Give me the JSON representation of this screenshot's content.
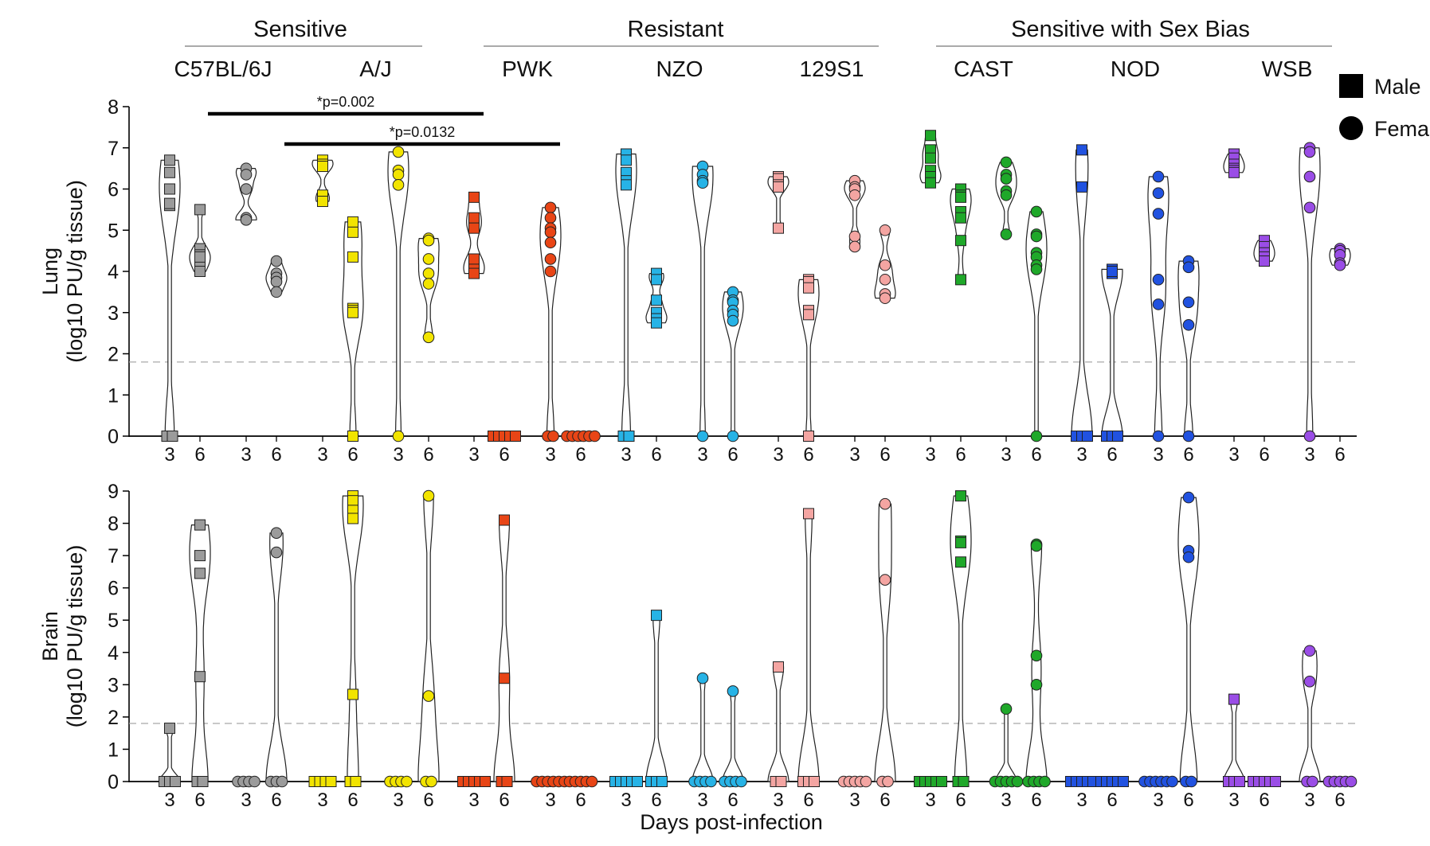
{
  "colors": {
    "C57BL/6J": "#9b9b9b",
    "A/J": "#f2e400",
    "PWK": "#e84516",
    "NZO": "#27b3e6",
    "129S1": "#f4a5a2",
    "CAST": "#1fa82a",
    "NOD": "#2152e0",
    "WSB": "#9a4de6"
  },
  "chart_data": {
    "type": "violin-scatter",
    "group_headers": [
      {
        "label": "Sensitive",
        "strains": [
          "C57BL/6J",
          "A/J"
        ]
      },
      {
        "label": "Resistant",
        "strains": [
          "PWK",
          "NZO",
          "129S1"
        ]
      },
      {
        "label": "Sensitive with Sex Bias",
        "strains": [
          "CAST",
          "NOD",
          "WSB"
        ]
      }
    ],
    "strains": [
      "C57BL/6J",
      "A/J",
      "PWK",
      "NZO",
      "129S1",
      "CAST",
      "NOD",
      "WSB"
    ],
    "days": [
      "3",
      "6"
    ],
    "xlabel": "Days post-infection",
    "legend": [
      {
        "label": "Male",
        "shape": "square"
      },
      {
        "label": "Female",
        "shape": "circle"
      }
    ],
    "panels": [
      {
        "name": "Lung",
        "ylabel_line1": "Lung",
        "ylabel_line2": "(log10 PU/g tissue)",
        "ylim": [
          0,
          8
        ],
        "yticks": [
          "0",
          "1",
          "2",
          "3",
          "4",
          "5",
          "6",
          "7",
          "8"
        ],
        "detection_limit": 1.8,
        "annotations": [
          {
            "text": "*p=0.002",
            "from": "C57BL/6J|male|3",
            "to": "PWK|male|3"
          },
          {
            "text": "*p=0.0132",
            "from": "C57BL/6J|female|3",
            "to": "PWK|female|3"
          }
        ],
        "groups": [
          {
            "strain": "C57BL/6J",
            "sex": "male",
            "day": "3",
            "values": [
              6.7,
              6.4,
              6.0,
              5.6,
              5.65,
              0,
              0
            ]
          },
          {
            "strain": "C57BL/6J",
            "sex": "male",
            "day": "6",
            "values": [
              5.5,
              4.55,
              4.4,
              4.2,
              4.0,
              4.35
            ]
          },
          {
            "strain": "C57BL/6J",
            "sex": "female",
            "day": "3",
            "values": [
              6.5,
              6.35,
              5.3,
              5.25,
              6.0
            ]
          },
          {
            "strain": "C57BL/6J",
            "sex": "female",
            "day": "6",
            "values": [
              4.25,
              3.95,
              3.85,
              3.75,
              3.5
            ]
          },
          {
            "strain": "A/J",
            "sex": "male",
            "day": "3",
            "values": [
              6.7,
              6.6,
              6.55,
              5.85,
              5.7
            ]
          },
          {
            "strain": "A/J",
            "sex": "male",
            "day": "6",
            "values": [
              5.2,
              4.95,
              4.35,
              3.1,
              3.05,
              3.0,
              0
            ]
          },
          {
            "strain": "A/J",
            "sex": "female",
            "day": "3",
            "values": [
              6.9,
              6.45,
              6.35,
              6.1,
              0
            ]
          },
          {
            "strain": "A/J",
            "sex": "female",
            "day": "6",
            "values": [
              4.8,
              4.75,
              4.3,
              3.95,
              3.7,
              2.4
            ]
          },
          {
            "strain": "PWK",
            "sex": "male",
            "day": "3",
            "values": [
              5.8,
              5.3,
              5.05,
              4.3,
              4.05,
              3.95
            ]
          },
          {
            "strain": "PWK",
            "sex": "male",
            "day": "6",
            "values": [
              0,
              0,
              0,
              0,
              0
            ]
          },
          {
            "strain": "PWK",
            "sex": "female",
            "day": "3",
            "values": [
              5.55,
              5.3,
              5.05,
              4.95,
              4.7,
              4.3,
              4.0,
              0,
              0
            ]
          },
          {
            "strain": "PWK",
            "sex": "female",
            "day": "6",
            "values": [
              0,
              0,
              0,
              0,
              0,
              0
            ]
          },
          {
            "strain": "NZO",
            "sex": "male",
            "day": "3",
            "values": [
              6.85,
              6.7,
              6.4,
              6.2,
              6.1,
              0,
              0
            ]
          },
          {
            "strain": "NZO",
            "sex": "male",
            "day": "6",
            "values": [
              3.95,
              3.8,
              3.3,
              3.0,
              2.85,
              2.75
            ]
          },
          {
            "strain": "NZO",
            "sex": "female",
            "day": "3",
            "values": [
              6.55,
              6.35,
              6.2,
              6.15,
              0
            ]
          },
          {
            "strain": "NZO",
            "sex": "female",
            "day": "6",
            "values": [
              3.5,
              3.3,
              3.25,
              3.05,
              2.95,
              2.8,
              0
            ]
          },
          {
            "strain": "129S1",
            "sex": "male",
            "day": "3",
            "values": [
              6.3,
              6.25,
              6.1,
              6.05,
              5.05
            ]
          },
          {
            "strain": "129S1",
            "sex": "male",
            "day": "6",
            "values": [
              3.8,
              3.75,
              3.6,
              3.05,
              2.95,
              0
            ]
          },
          {
            "strain": "129S1",
            "sex": "female",
            "day": "3",
            "values": [
              6.2,
              6.05,
              6.0,
              5.85,
              4.85,
              4.6
            ]
          },
          {
            "strain": "129S1",
            "sex": "female",
            "day": "6",
            "values": [
              5.0,
              4.15,
              3.8,
              3.45,
              3.35
            ]
          },
          {
            "strain": "CAST",
            "sex": "male",
            "day": "3",
            "values": [
              7.3,
              6.95,
              6.75,
              6.45,
              6.3,
              6.15
            ]
          },
          {
            "strain": "CAST",
            "sex": "male",
            "day": "6",
            "values": [
              6.0,
              5.85,
              5.8,
              5.45,
              5.3,
              4.75,
              3.8
            ]
          },
          {
            "strain": "CAST",
            "sex": "female",
            "day": "3",
            "values": [
              6.65,
              6.35,
              6.25,
              5.95,
              5.85,
              4.9
            ]
          },
          {
            "strain": "CAST",
            "sex": "female",
            "day": "6",
            "values": [
              5.45,
              4.9,
              4.85,
              4.45,
              4.35,
              4.15,
              4.05,
              0
            ]
          },
          {
            "strain": "NOD",
            "sex": "male",
            "day": "3",
            "values": [
              6.95,
              6.05,
              0,
              0,
              0
            ]
          },
          {
            "strain": "NOD",
            "sex": "male",
            "day": "6",
            "values": [
              4.05,
              3.95,
              4.0,
              0,
              0,
              0
            ]
          },
          {
            "strain": "NOD",
            "sex": "female",
            "day": "3",
            "values": [
              6.3,
              5.9,
              5.4,
              3.8,
              3.2,
              0
            ]
          },
          {
            "strain": "NOD",
            "sex": "female",
            "day": "6",
            "values": [
              4.25,
              4.1,
              3.25,
              2.7,
              0
            ]
          },
          {
            "strain": "WSB",
            "sex": "male",
            "day": "3",
            "values": [
              6.85,
              6.75,
              6.6,
              6.5,
              6.45,
              6.4
            ]
          },
          {
            "strain": "WSB",
            "sex": "male",
            "day": "6",
            "values": [
              4.75,
              4.6,
              4.45,
              4.35,
              4.25
            ]
          },
          {
            "strain": "WSB",
            "sex": "female",
            "day": "3",
            "values": [
              7.0,
              6.9,
              6.3,
              5.55,
              0
            ]
          },
          {
            "strain": "WSB",
            "sex": "female",
            "day": "6",
            "values": [
              4.55,
              4.5,
              4.4,
              4.2,
              4.15
            ]
          }
        ]
      },
      {
        "name": "Brain",
        "ylabel_line1": "Brain",
        "ylabel_line2": "(log10 PU/g tissue)",
        "ylim": [
          0,
          9
        ],
        "yticks": [
          "0",
          "1",
          "2",
          "3",
          "4",
          "5",
          "6",
          "7",
          "8",
          "9"
        ],
        "detection_limit": 1.8,
        "annotations": [],
        "groups": [
          {
            "strain": "C57BL/6J",
            "sex": "male",
            "day": "3",
            "values": [
              1.65,
              0,
              0,
              0
            ]
          },
          {
            "strain": "C57BL/6J",
            "sex": "male",
            "day": "6",
            "values": [
              7.95,
              7.0,
              6.45,
              3.25,
              0,
              0
            ]
          },
          {
            "strain": "C57BL/6J",
            "sex": "female",
            "day": "3",
            "values": [
              0,
              0,
              0,
              0
            ]
          },
          {
            "strain": "C57BL/6J",
            "sex": "female",
            "day": "6",
            "values": [
              7.7,
              7.1,
              0,
              0,
              0
            ]
          },
          {
            "strain": "A/J",
            "sex": "male",
            "day": "3",
            "values": [
              0,
              0,
              0,
              0
            ]
          },
          {
            "strain": "A/J",
            "sex": "male",
            "day": "6",
            "values": [
              8.85,
              8.7,
              8.4,
              8.15,
              2.7,
              0,
              0
            ]
          },
          {
            "strain": "A/J",
            "sex": "female",
            "day": "3",
            "values": [
              0,
              0,
              0,
              0
            ]
          },
          {
            "strain": "A/J",
            "sex": "female",
            "day": "6",
            "values": [
              8.85,
              2.65,
              0,
              0
            ]
          },
          {
            "strain": "PWK",
            "sex": "male",
            "day": "3",
            "values": [
              0,
              0,
              0,
              0,
              0
            ]
          },
          {
            "strain": "PWK",
            "sex": "male",
            "day": "6",
            "values": [
              8.1,
              3.2,
              0,
              0
            ]
          },
          {
            "strain": "PWK",
            "sex": "female",
            "day": "3",
            "values": [
              0,
              0,
              0,
              0,
              0,
              0
            ]
          },
          {
            "strain": "PWK",
            "sex": "female",
            "day": "6",
            "values": [
              0,
              0,
              0,
              0,
              0
            ]
          },
          {
            "strain": "NZO",
            "sex": "male",
            "day": "3",
            "values": [
              0,
              0,
              0,
              0,
              0
            ]
          },
          {
            "strain": "NZO",
            "sex": "male",
            "day": "6",
            "values": [
              5.15,
              0,
              0,
              0
            ]
          },
          {
            "strain": "NZO",
            "sex": "female",
            "day": "3",
            "values": [
              3.2,
              0,
              0,
              0,
              0
            ]
          },
          {
            "strain": "NZO",
            "sex": "female",
            "day": "6",
            "values": [
              2.8,
              0,
              0,
              0,
              0
            ]
          },
          {
            "strain": "129S1",
            "sex": "male",
            "day": "3",
            "values": [
              3.55,
              0,
              0
            ]
          },
          {
            "strain": "129S1",
            "sex": "male",
            "day": "6",
            "values": [
              8.3,
              0,
              0,
              0
            ]
          },
          {
            "strain": "129S1",
            "sex": "female",
            "day": "3",
            "values": [
              0,
              0,
              0,
              0,
              0
            ]
          },
          {
            "strain": "129S1",
            "sex": "female",
            "day": "6",
            "values": [
              8.6,
              6.25,
              0,
              0
            ]
          },
          {
            "strain": "CAST",
            "sex": "male",
            "day": "3",
            "values": [
              0,
              0,
              0,
              0,
              0
            ]
          },
          {
            "strain": "CAST",
            "sex": "male",
            "day": "6",
            "values": [
              8.85,
              7.45,
              7.4,
              6.8,
              0,
              0
            ]
          },
          {
            "strain": "CAST",
            "sex": "female",
            "day": "3",
            "values": [
              2.25,
              0,
              0,
              0,
              0,
              0
            ]
          },
          {
            "strain": "CAST",
            "sex": "female",
            "day": "6",
            "values": [
              7.35,
              7.3,
              3.9,
              3.0,
              0,
              0,
              0,
              0
            ]
          },
          {
            "strain": "NOD",
            "sex": "male",
            "day": "3",
            "values": [
              0,
              0,
              0,
              0,
              0
            ]
          },
          {
            "strain": "NOD",
            "sex": "male",
            "day": "6",
            "values": [
              0,
              0,
              0,
              0,
              0
            ]
          },
          {
            "strain": "NOD",
            "sex": "female",
            "day": "3",
            "values": [
              0,
              0,
              0,
              0,
              0,
              0
            ]
          },
          {
            "strain": "NOD",
            "sex": "female",
            "day": "6",
            "values": [
              8.8,
              7.15,
              6.95,
              0,
              0
            ]
          },
          {
            "strain": "WSB",
            "sex": "male",
            "day": "3",
            "values": [
              2.55,
              0,
              0,
              0
            ]
          },
          {
            "strain": "WSB",
            "sex": "male",
            "day": "6",
            "values": [
              0,
              0,
              0,
              0,
              0
            ]
          },
          {
            "strain": "WSB",
            "sex": "female",
            "day": "3",
            "values": [
              4.05,
              3.1,
              0,
              0
            ]
          },
          {
            "strain": "WSB",
            "sex": "female",
            "day": "6",
            "values": [
              0,
              0,
              0,
              0,
              0
            ]
          }
        ]
      }
    ]
  }
}
